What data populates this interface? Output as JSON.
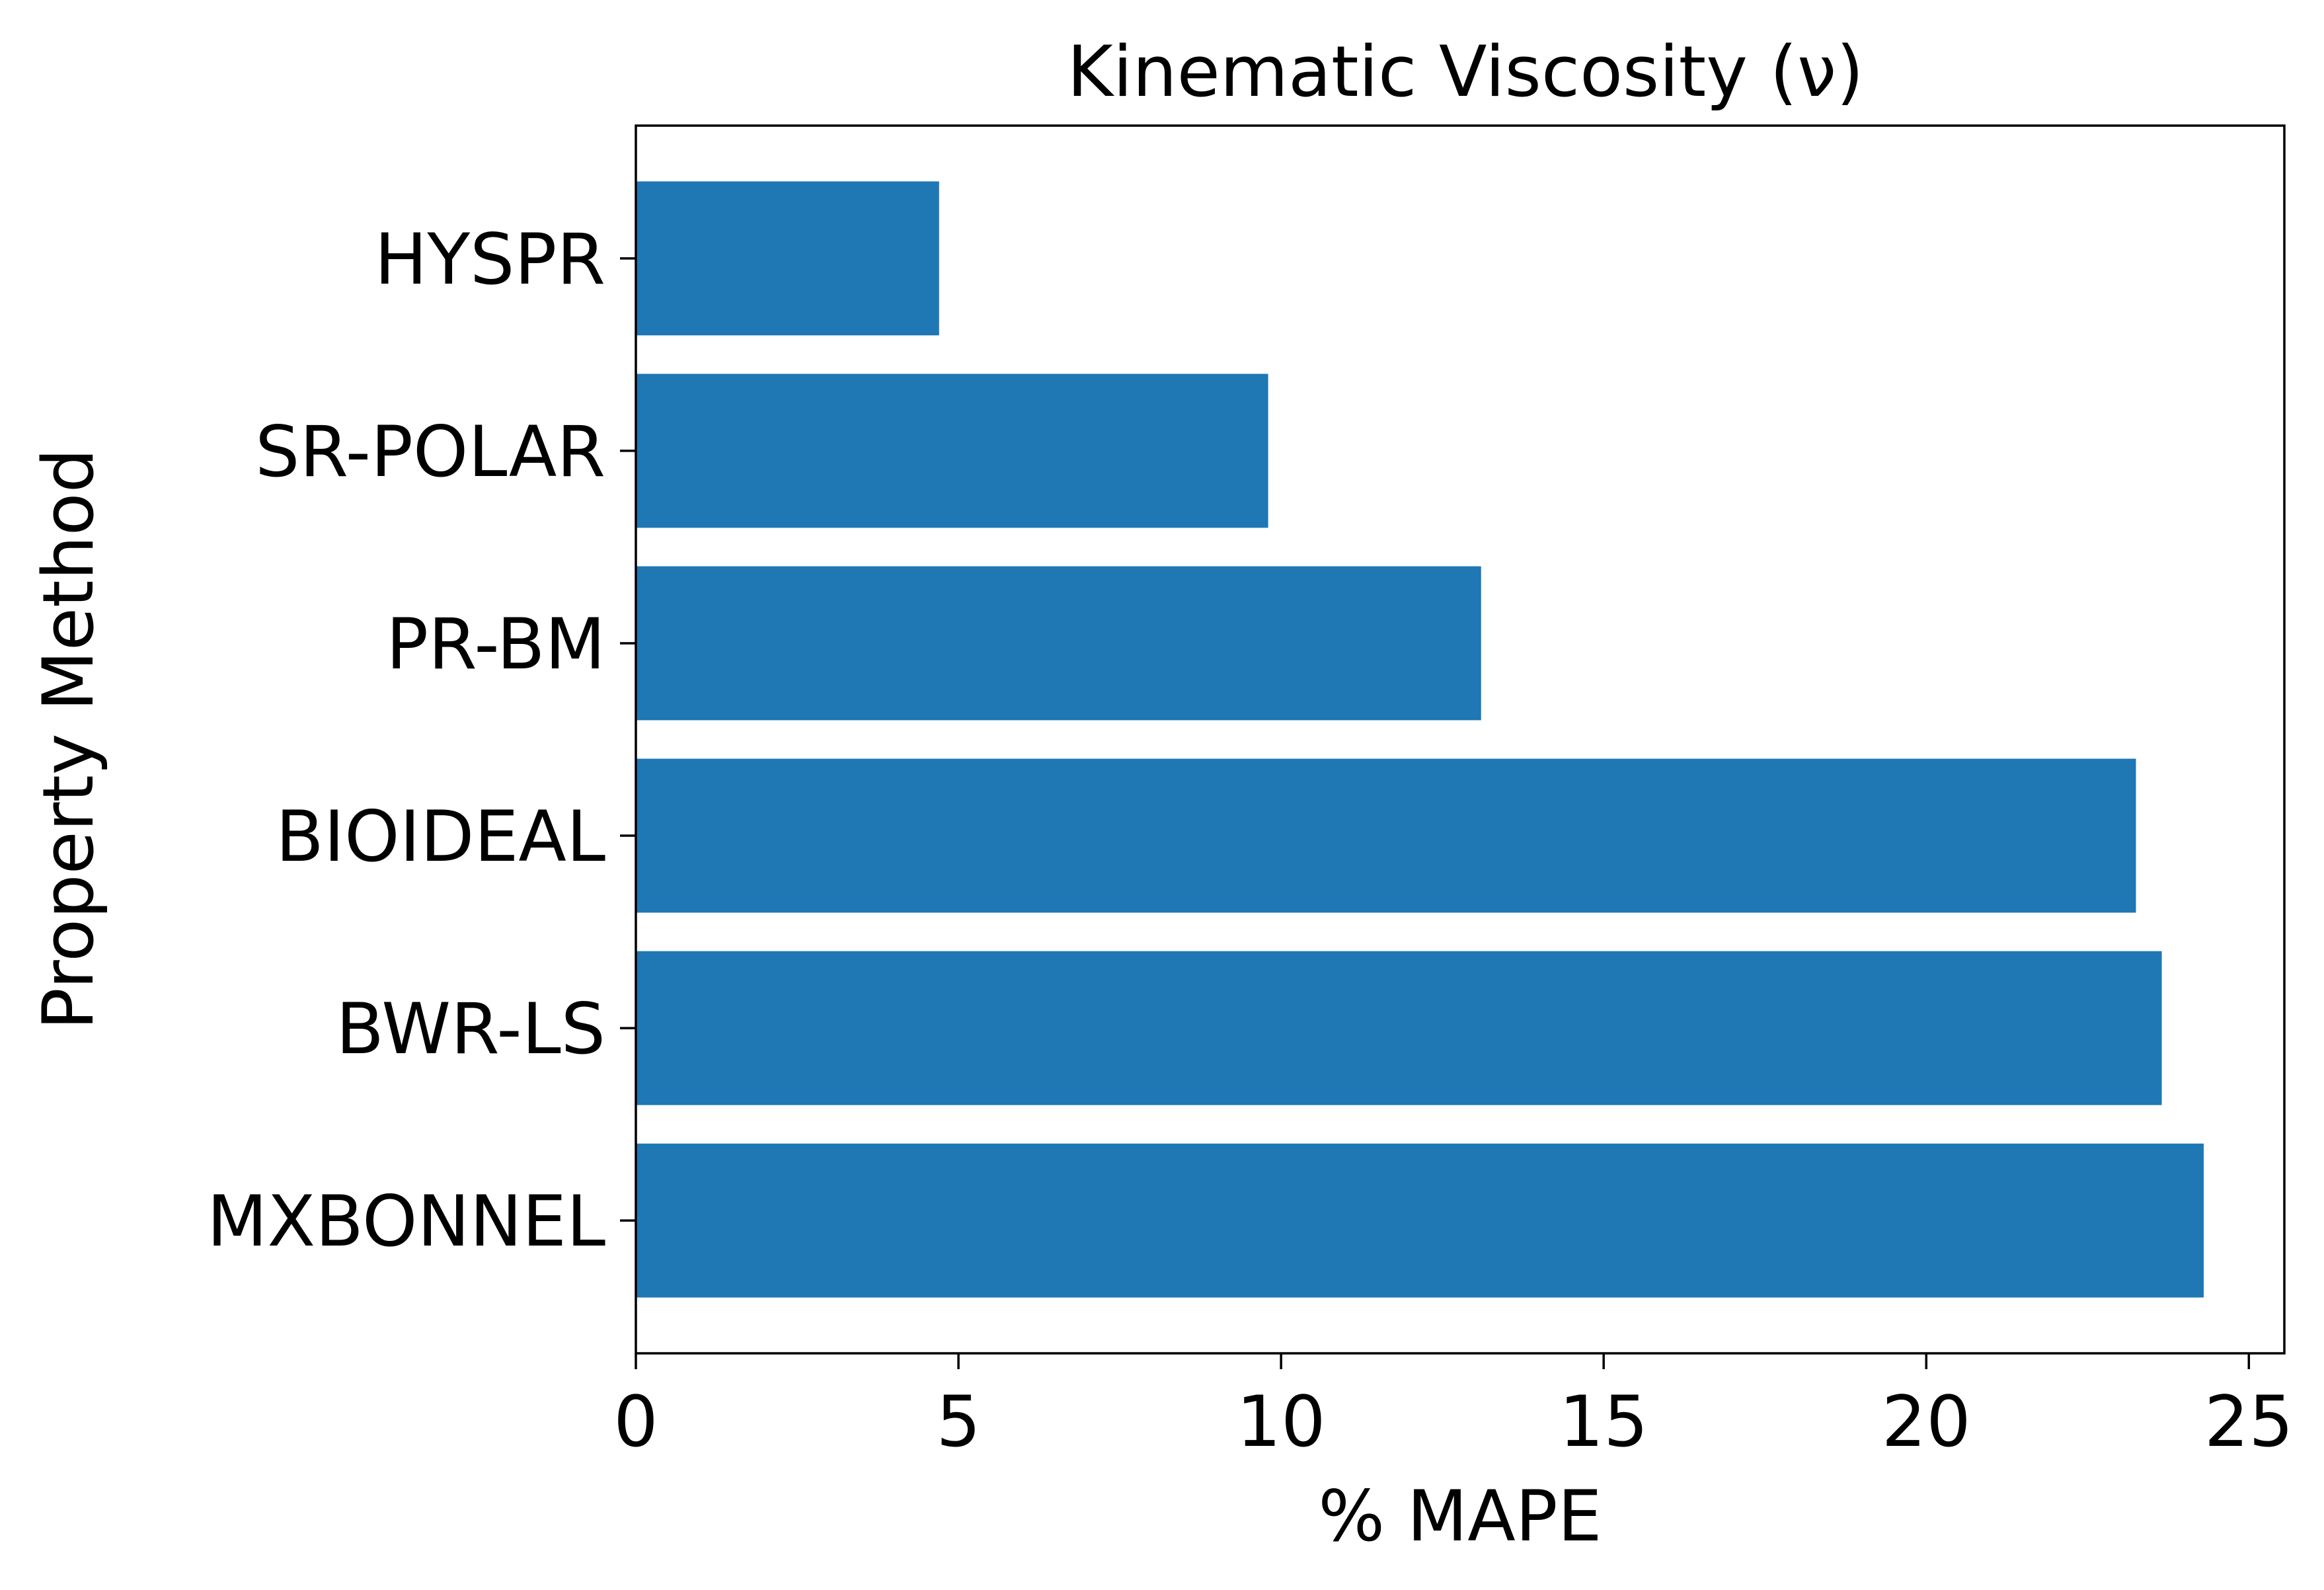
{
  "chart_data": {
    "type": "bar",
    "orientation": "horizontal",
    "title": "Kinematic Viscosity (ν)",
    "xlabel": "% MAPE",
    "ylabel": "Property Method",
    "categories": [
      "MXBONNEL",
      "BWR-LS",
      "BIOIDEAL",
      "PR-BM",
      "SR-POLAR",
      "HYSPR"
    ],
    "values": [
      24.3,
      23.65,
      23.25,
      13.1,
      9.8,
      4.7
    ],
    "xlim": [
      0,
      25.55
    ],
    "xticks": [
      0,
      5,
      10,
      15,
      20,
      25
    ],
    "xtick_labels": [
      "0",
      "5",
      "10",
      "15",
      "20",
      "25"
    ],
    "grid": false,
    "legend": "none",
    "bar_color": "#1f77b4"
  }
}
